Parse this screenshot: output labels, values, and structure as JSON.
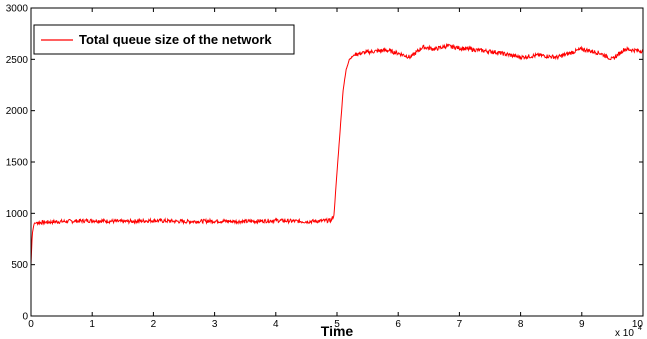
{
  "chart_data": {
    "type": "line",
    "title": "",
    "xlabel": "Time",
    "ylabel": "",
    "x_multiplier": {
      "base": "x 10",
      "exponent": "4"
    },
    "xlim": [
      0,
      10
    ],
    "ylim": [
      0,
      3000
    ],
    "x_ticks": [
      "0",
      "1",
      "2",
      "3",
      "4",
      "5",
      "6",
      "7",
      "8",
      "9",
      "10"
    ],
    "y_ticks": [
      "0",
      "500",
      "1000",
      "1500",
      "2000",
      "2500",
      "3000"
    ],
    "grid": false,
    "legend_position": "top-left",
    "series": [
      {
        "name": "Total queue size of the network",
        "color": "#ff0000",
        "x": [
          0,
          0.02,
          0.05,
          0.1,
          0.5,
          1,
          1.5,
          2,
          2.5,
          3,
          3.5,
          4,
          4.5,
          4.9,
          4.95,
          5.0,
          5.05,
          5.1,
          5.15,
          5.2,
          5.3,
          5.5,
          5.8,
          6.0,
          6.2,
          6.4,
          6.6,
          6.8,
          7.0,
          7.3,
          7.6,
          8.0,
          8.3,
          8.6,
          9.0,
          9.3,
          9.5,
          9.7,
          10.0
        ],
        "y": [
          500,
          800,
          900,
          910,
          920,
          930,
          920,
          930,
          920,
          925,
          920,
          930,
          920,
          930,
          980,
          1400,
          1800,
          2200,
          2400,
          2500,
          2550,
          2570,
          2590,
          2560,
          2520,
          2620,
          2600,
          2630,
          2610,
          2590,
          2570,
          2520,
          2540,
          2520,
          2600,
          2560,
          2500,
          2600,
          2580
        ]
      }
    ]
  }
}
